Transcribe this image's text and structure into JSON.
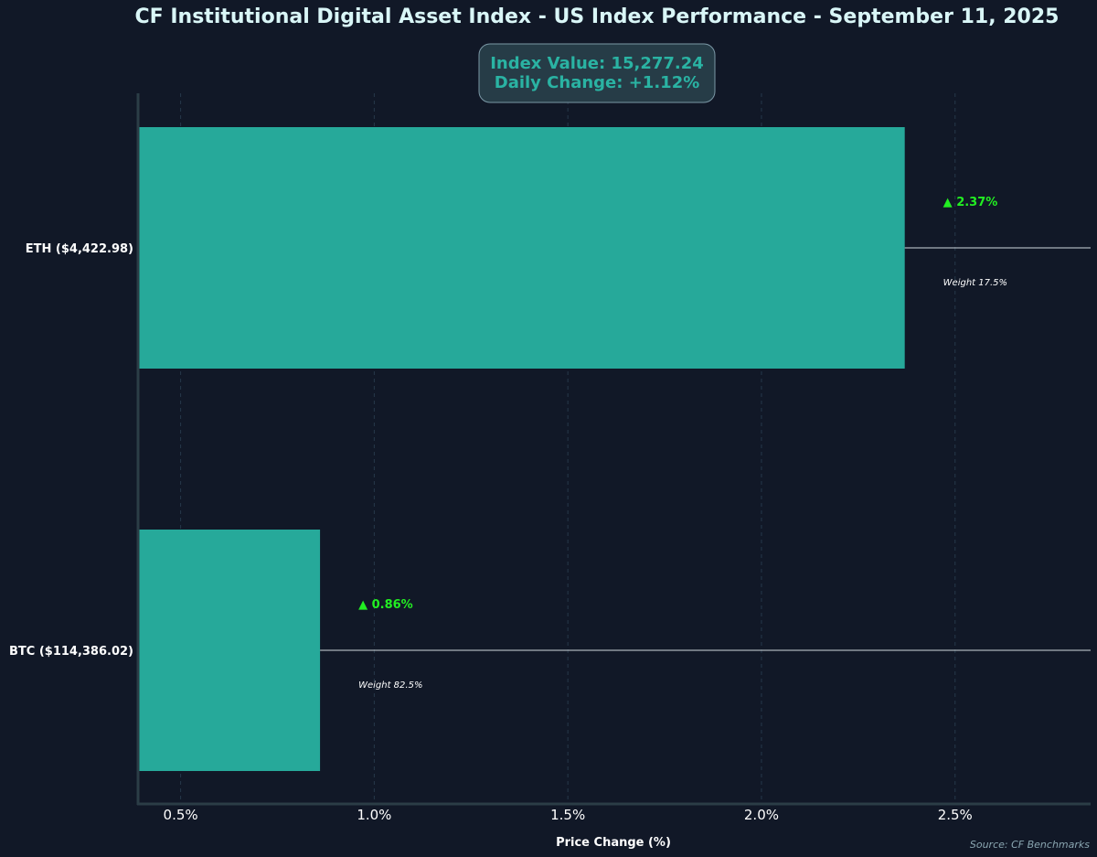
{
  "chart_data": {
    "type": "bar",
    "orientation": "horizontal",
    "title": "CF Institutional Digital Asset Index - US Index Performance - September 11, 2025",
    "info_box": {
      "line1": "Index Value: 15,277.24",
      "line2": "Daily Change: +1.12%"
    },
    "categories": [
      "ETH ($4,422.98)",
      "BTC ($114,386.02)"
    ],
    "values": [
      2.37,
      0.86
    ],
    "change_labels": [
      "▲ 2.37%",
      "▲ 0.86%"
    ],
    "weight_labels": [
      "Weight 17.5%",
      "Weight 82.5%"
    ],
    "xlabel": "Price Change (%)",
    "ylabel": "",
    "xlim": [
      0.39,
      2.85
    ],
    "xticks": [
      0.5,
      1.0,
      1.5,
      2.0,
      2.5
    ],
    "xtick_labels": [
      "0.5%",
      "1.0%",
      "1.5%",
      "2.0%",
      "2.5%"
    ],
    "grid": "vertical dashed",
    "source": "Source: CF Benchmarks",
    "colors": {
      "background": "#111827",
      "bar": "#26a99a",
      "positive": "#22ee22",
      "title": "#d9f6f7",
      "info_text": "#2ab3a3",
      "info_box_fill": "#263c47",
      "info_box_stroke": "#7b98a6",
      "axis": "#2b3d46",
      "grid": "#26384a",
      "source": "#8aa6b1"
    }
  }
}
